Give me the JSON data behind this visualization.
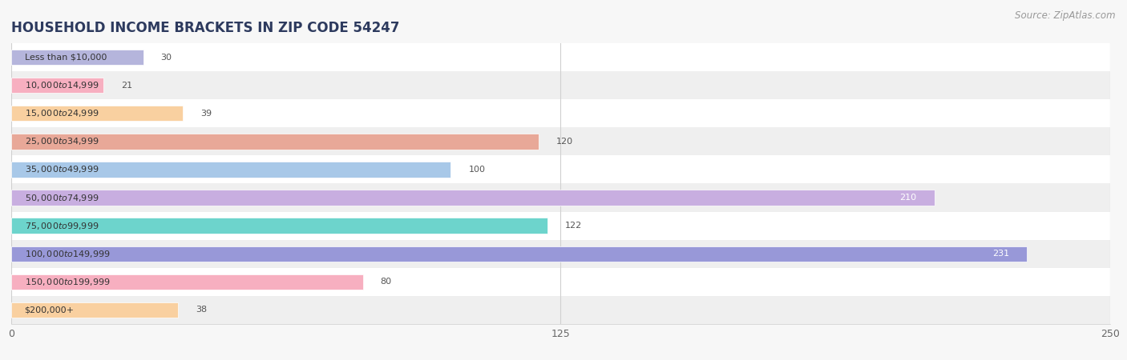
{
  "title": "HOUSEHOLD INCOME BRACKETS IN ZIP CODE 54247",
  "source": "Source: ZipAtlas.com",
  "categories": [
    "Less than $10,000",
    "$10,000 to $14,999",
    "$15,000 to $24,999",
    "$25,000 to $34,999",
    "$35,000 to $49,999",
    "$50,000 to $74,999",
    "$75,000 to $99,999",
    "$100,000 to $149,999",
    "$150,000 to $199,999",
    "$200,000+"
  ],
  "values": [
    30,
    21,
    39,
    120,
    100,
    210,
    122,
    231,
    80,
    38
  ],
  "bar_colors": [
    "#b5b5dc",
    "#f7afc0",
    "#f9d0a0",
    "#e8a898",
    "#a8c8e8",
    "#c8aee0",
    "#6dd4cc",
    "#9898d8",
    "#f7afc0",
    "#f9d0a0"
  ],
  "xlim": [
    0,
    250
  ],
  "xticks": [
    0,
    125,
    250
  ],
  "background_color": "#f7f7f7",
  "row_bg_colors": [
    "#ffffff",
    "#efefef"
  ],
  "title_fontsize": 12,
  "source_fontsize": 8.5,
  "tick_fontsize": 9,
  "label_fontsize": 8,
  "value_fontsize": 8,
  "bar_height": 0.55,
  "value_threshold": 180
}
